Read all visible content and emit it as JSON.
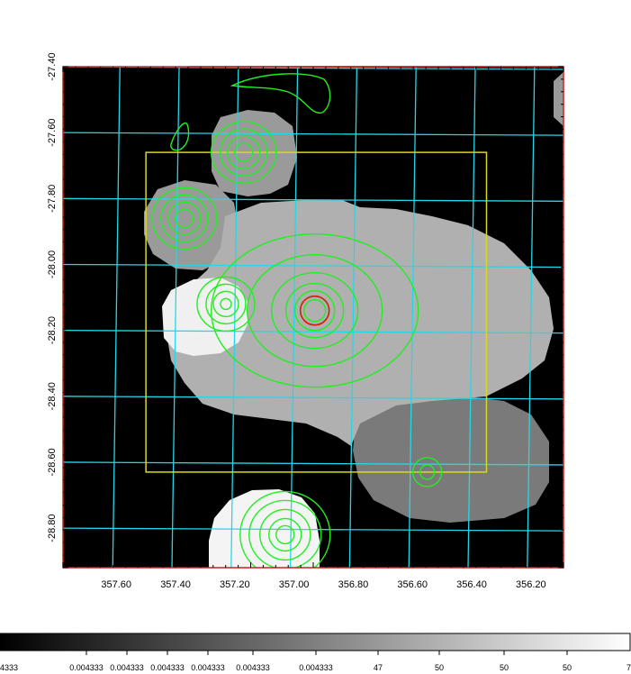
{
  "chart_data": {
    "type": "heatmap",
    "title": "",
    "xlabel": "",
    "ylabel": "",
    "xlim": [
      357.78,
      356.09
    ],
    "ylim": [
      -27.4,
      -28.92
    ],
    "x_ticks": [
      357.6,
      357.4,
      357.2,
      357.0,
      356.8,
      356.6,
      356.4,
      356.2
    ],
    "y_ticks": [
      -27.4,
      -27.6,
      -27.8,
      -28.0,
      -28.2,
      -28.4,
      -28.6,
      -28.8
    ],
    "x_tick_labels": [
      "357.60",
      "357.40",
      "357.20",
      "357.00",
      "356.80",
      "356.60",
      "356.40",
      "356.20"
    ],
    "y_tick_labels": [
      "-27.40",
      "-27.60",
      "-27.80",
      "-28.00",
      "-28.20",
      "-28.40",
      "-28.60",
      "-28.80"
    ],
    "grid": true,
    "colormap": "gray",
    "colorbar_labels": [
      "4333",
      "0.004333",
      "0.004333",
      "0.004333",
      "0.004333",
      "0.004333",
      "0.004333",
      "47",
      "50",
      "50",
      "50",
      "7"
    ],
    "regions": [
      {
        "name": "bright-blob-west",
        "x": 357.22,
        "y": -28.14,
        "level": "white"
      },
      {
        "name": "bright-blob-south",
        "x": 357.05,
        "y": -28.85,
        "level": "white"
      },
      {
        "name": "central-cloud",
        "x": 356.9,
        "y": -28.1,
        "level": "light-gray"
      },
      {
        "name": "southeast-cloud",
        "x": 356.55,
        "y": -28.6,
        "level": "dark-gray"
      }
    ],
    "contour_centers": [
      {
        "x": 356.93,
        "y": -28.14
      },
      {
        "x": 357.23,
        "y": -28.12
      },
      {
        "x": 357.37,
        "y": -27.86
      },
      {
        "x": 357.17,
        "y": -27.66
      },
      {
        "x": 357.03,
        "y": -28.82
      },
      {
        "x": 356.55,
        "y": -28.63
      }
    ],
    "markers": [
      {
        "name": "red-circle-source",
        "x": 356.93,
        "y": -28.14
      }
    ],
    "box": {
      "x_range": [
        357.5,
        356.35
      ],
      "y_range": [
        -27.66,
        -28.63
      ]
    }
  },
  "colors": {
    "grid": "#22d8e8",
    "contour": "#22ee22",
    "box": "#d8d820",
    "marker": "#cc2200",
    "frame": "#cc2222",
    "background": "#000000"
  }
}
